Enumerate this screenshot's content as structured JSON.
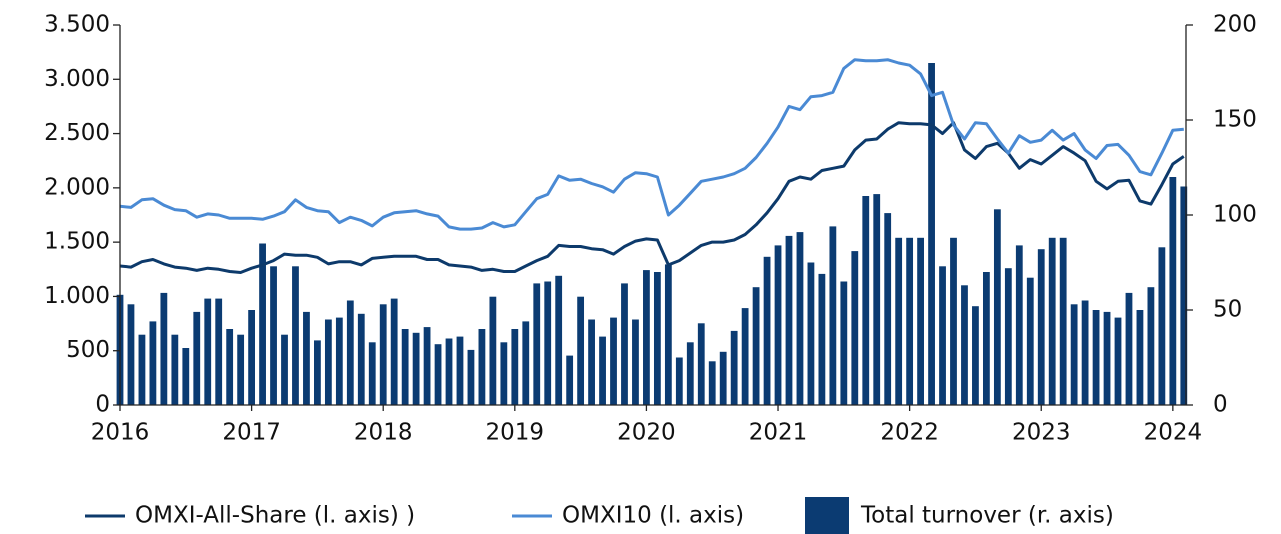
{
  "chart_data": {
    "type": "combo",
    "xlim": [
      2016,
      2024.1
    ],
    "xticks": [
      2016,
      2017,
      2018,
      2019,
      2020,
      2021,
      2022,
      2023,
      2024
    ],
    "ylim": [
      0,
      3500
    ],
    "yticks": [
      0,
      500,
      {
        "value": 1000,
        "label": "1.000"
      },
      {
        "value": 1500,
        "label": "1.500"
      },
      {
        "value": 2000,
        "label": "2.000"
      },
      {
        "value": 2500,
        "label": "2.500"
      },
      {
        "value": 3000,
        "label": "3.000"
      },
      {
        "value": 3500,
        "label": "3.500"
      }
    ],
    "y2lim": [
      0,
      200
    ],
    "y2ticks": [
      0,
      50,
      100,
      150,
      200
    ],
    "x": [
      2016,
      2016.0833,
      2016.1667,
      2016.25,
      2016.3333,
      2016.4167,
      2016.5,
      2016.5833,
      2016.6667,
      2016.75,
      2016.8333,
      2016.9167,
      2017,
      2017.0833,
      2017.1667,
      2017.25,
      2017.3333,
      2017.4167,
      2017.5,
      2017.5833,
      2017.6667,
      2017.75,
      2017.8333,
      2017.9167,
      2018,
      2018.0833,
      2018.1667,
      2018.25,
      2018.3333,
      2018.4167,
      2018.5,
      2018.5833,
      2018.6667,
      2018.75,
      2018.8333,
      2018.9167,
      2019,
      2019.0833,
      2019.1667,
      2019.25,
      2019.3333,
      2019.4167,
      2019.5,
      2019.5833,
      2019.6667,
      2019.75,
      2019.8333,
      2019.9167,
      2020,
      2020.0833,
      2020.1667,
      2020.25,
      2020.3333,
      2020.4167,
      2020.5,
      2020.5833,
      2020.6667,
      2020.75,
      2020.8333,
      2020.9167,
      2021,
      2021.0833,
      2021.1667,
      2021.25,
      2021.3333,
      2021.4167,
      2021.5,
      2021.5833,
      2021.6667,
      2021.75,
      2021.8333,
      2021.9167,
      2022,
      2022.0833,
      2022.1667,
      2022.25,
      2022.3333,
      2022.4167,
      2022.5,
      2022.5833,
      2022.6667,
      2022.75,
      2022.8333,
      2022.9167,
      2023,
      2023.0833,
      2023.1667,
      2023.25,
      2023.3333,
      2023.4167,
      2023.5,
      2023.5833,
      2023.6667,
      2023.75,
      2023.8333,
      2023.9167,
      2024,
      2024.0833
    ],
    "series": [
      {
        "name": "Total turnover (r. axis)",
        "type": "bar",
        "axis": "y2",
        "color": "#0b3b72",
        "values": [
          58,
          53,
          37,
          44,
          59,
          37,
          30,
          49,
          56,
          56,
          40,
          37,
          50,
          85,
          73,
          37,
          73,
          49,
          34,
          45,
          46,
          55,
          48,
          33,
          53,
          56,
          40,
          38,
          41,
          32,
          35,
          36,
          29,
          40,
          57,
          33,
          40,
          44,
          64,
          65,
          68,
          26,
          57,
          45,
          36,
          46,
          64,
          45,
          71,
          70,
          74,
          25,
          33,
          43,
          23,
          28,
          39,
          51,
          62,
          78,
          84,
          89,
          91,
          75,
          69,
          94,
          65,
          81,
          110,
          111,
          101,
          88,
          88,
          88,
          180,
          73,
          88,
          63,
          52,
          70,
          103,
          72,
          84,
          67,
          82,
          88,
          88,
          53,
          55,
          50,
          49,
          46,
          59,
          50,
          62,
          83,
          120,
          115
        ]
      },
      {
        "name": "OMXI-All-Share (l. axis) )",
        "type": "line",
        "color": "#0d3a6b",
        "values": [
          1280,
          1270,
          1320,
          1340,
          1300,
          1270,
          1260,
          1240,
          1260,
          1250,
          1230,
          1220,
          1260,
          1290,
          1330,
          1390,
          1380,
          1380,
          1360,
          1300,
          1320,
          1320,
          1290,
          1350,
          1360,
          1370,
          1370,
          1370,
          1340,
          1340,
          1290,
          1280,
          1270,
          1240,
          1250,
          1230,
          1230,
          1280,
          1330,
          1370,
          1470,
          1460,
          1460,
          1440,
          1430,
          1390,
          1460,
          1510,
          1530,
          1520,
          1290,
          1330,
          1400,
          1470,
          1500,
          1500,
          1520,
          1570,
          1660,
          1770,
          1900,
          2060,
          2100,
          2080,
          2160,
          2180,
          2200,
          2350,
          2440,
          2450,
          2540,
          2600,
          2590,
          2590,
          2580,
          2500,
          2600,
          2350,
          2270,
          2380,
          2410,
          2320,
          2180,
          2260,
          2220,
          2300,
          2380,
          2320,
          2250,
          2060,
          1990,
          2060,
          2070,
          1880,
          1850,
          2030,
          2220,
          2290
        ]
      },
      {
        "name": "OMXI10 (l. axis)",
        "type": "line",
        "color": "#4a8ad4",
        "values": [
          1830,
          1820,
          1890,
          1900,
          1840,
          1800,
          1790,
          1730,
          1760,
          1750,
          1720,
          1720,
          1720,
          1710,
          1740,
          1780,
          1890,
          1820,
          1790,
          1780,
          1680,
          1730,
          1700,
          1650,
          1730,
          1770,
          1780,
          1790,
          1760,
          1740,
          1640,
          1620,
          1620,
          1630,
          1680,
          1640,
          1660,
          1780,
          1900,
          1940,
          2110,
          2070,
          2080,
          2040,
          2010,
          1960,
          2080,
          2140,
          2130,
          2100,
          1750,
          1840,
          1950,
          2060,
          2080,
          2100,
          2130,
          2180,
          2280,
          2410,
          2560,
          2750,
          2720,
          2840,
          2850,
          2880,
          3100,
          3180,
          3170,
          3170,
          3180,
          3150,
          3130,
          3050,
          2850,
          2880,
          2580,
          2450,
          2600,
          2590,
          2450,
          2320,
          2480,
          2420,
          2440,
          2530,
          2440,
          2500,
          2350,
          2270,
          2390,
          2400,
          2300,
          2150,
          2120,
          2320,
          2530,
          2540
        ]
      }
    ]
  }
}
